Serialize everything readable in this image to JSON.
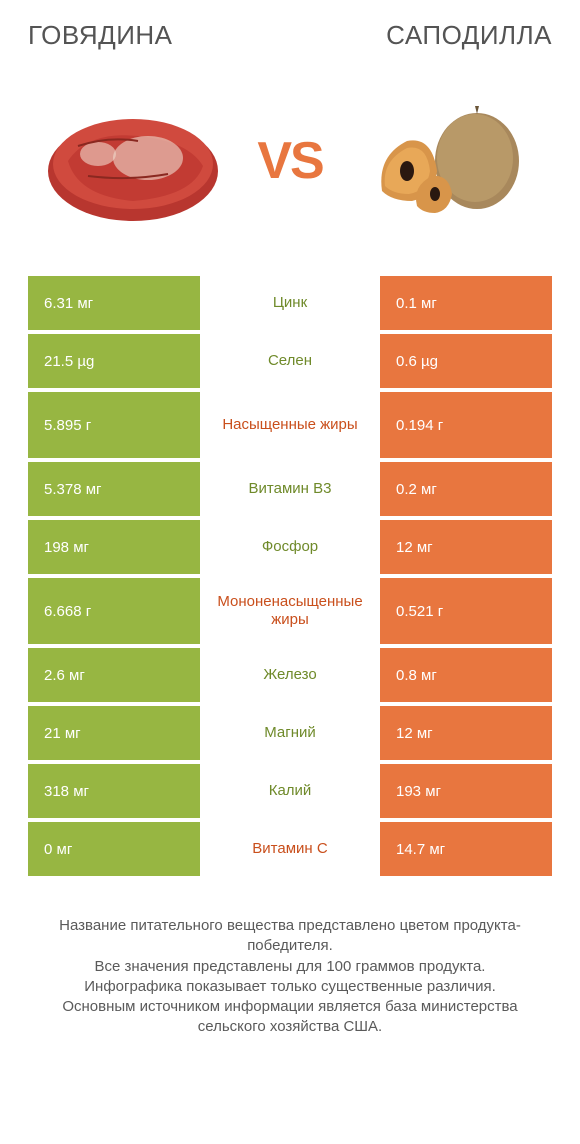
{
  "colors": {
    "left": "#97b642",
    "right": "#e8763f",
    "center_left": "#6f8a2a",
    "center_right": "#c94f1c",
    "vs": "#e8763f",
    "title": "#545454",
    "footer": "#5a5a5a",
    "bg": "#ffffff"
  },
  "header": {
    "left_title": "ГОВЯДИНА",
    "right_title": "САПОДИЛЛА"
  },
  "vs_label": "VS",
  "rows": [
    {
      "left": "6.31 мг",
      "center": "Цинк",
      "right": "0.1 мг",
      "winner": "left",
      "tall": false
    },
    {
      "left": "21.5 µg",
      "center": "Селен",
      "right": "0.6 µg",
      "winner": "left",
      "tall": false
    },
    {
      "left": "5.895 г",
      "center": "Насыщенные жиры",
      "right": "0.194 г",
      "winner": "right",
      "tall": true
    },
    {
      "left": "5.378 мг",
      "center": "Витамин B3",
      "right": "0.2 мг",
      "winner": "left",
      "tall": false
    },
    {
      "left": "198 мг",
      "center": "Фосфор",
      "right": "12 мг",
      "winner": "left",
      "tall": false
    },
    {
      "left": "6.668 г",
      "center": "Мононенасыщенные жиры",
      "right": "0.521 г",
      "winner": "right",
      "tall": true
    },
    {
      "left": "2.6 мг",
      "center": "Железо",
      "right": "0.8 мг",
      "winner": "left",
      "tall": false
    },
    {
      "left": "21 мг",
      "center": "Магний",
      "right": "12 мг",
      "winner": "left",
      "tall": false
    },
    {
      "left": "318 мг",
      "center": "Калий",
      "right": "193 мг",
      "winner": "left",
      "tall": false
    },
    {
      "left": "0 мг",
      "center": "Витамин C",
      "right": "14.7 мг",
      "winner": "right",
      "tall": false
    }
  ],
  "footer_lines": [
    "Название питательного вещества представлено цветом продукта-победителя.",
    "Все значения представлены для 100 граммов продукта.",
    "Инфографика показывает только существенные различия.",
    "Основным источником информации является база министерства сельского хозяйства США."
  ]
}
